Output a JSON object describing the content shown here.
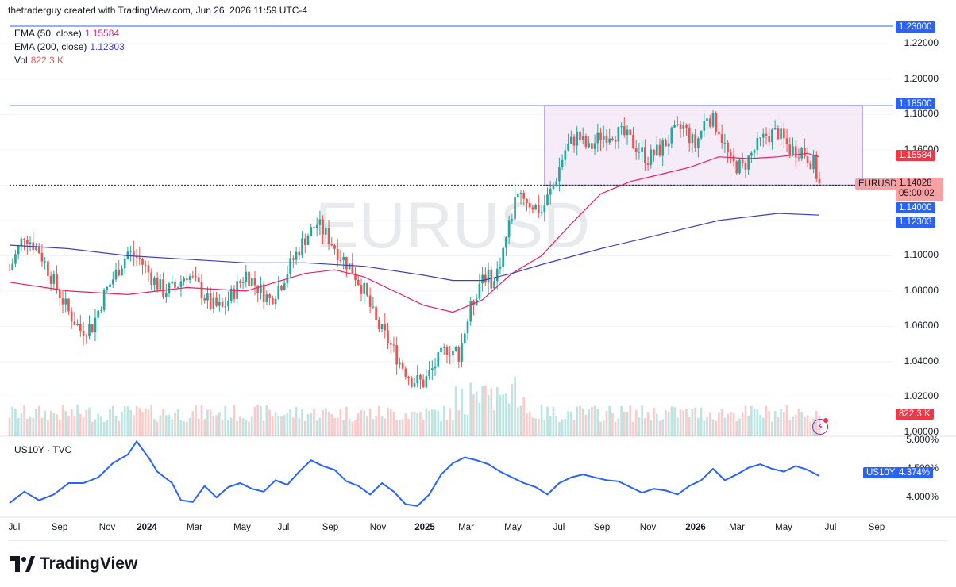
{
  "header": {
    "attribution": "thetraderguy created with TradingView.com, Jun 26, 2026 11:59 UTC-4"
  },
  "legend": {
    "ema50_label": "EMA (50, close)",
    "ema50_value": "1.15584",
    "ema200_label": "EMA (200, close)",
    "ema200_value": "1.12303",
    "vol_label": "Vol",
    "vol_value": "822.3 K"
  },
  "watermark": "EURUSD",
  "price_axis": {
    "ticks": [
      "1.22000",
      "1.20000",
      "1.18000",
      "1.16000",
      "1.10000",
      "1.08000",
      "1.06000",
      "1.04000",
      "1.02000",
      "1.00000"
    ],
    "badges": {
      "top": "1.23000",
      "resistance": "1.18500",
      "ema50": "1.15584",
      "symbol": "EURUSD",
      "last": "1.14028",
      "countdown": "05:00:02",
      "support": "1.14000",
      "ema200": "1.12303",
      "volume": "822.3 K"
    }
  },
  "sub_pane": {
    "title": "US10Y · TVC",
    "ticks": [
      "5.000%",
      "4.500%",
      "4.000%"
    ],
    "badge_symbol": "US10Y",
    "badge_value": "4.374%"
  },
  "time_axis": {
    "labels": [
      "Jul",
      "Sep",
      "Nov",
      "2024",
      "Mar",
      "May",
      "Jul",
      "Sep",
      "Nov",
      "2025",
      "Mar",
      "May",
      "Jul",
      "Sep",
      "Nov",
      "2026",
      "Mar",
      "May",
      "Jul",
      "Sep"
    ],
    "bold": [
      "2024",
      "2025",
      "2026"
    ]
  },
  "footer": {
    "logo_text": "TradingView"
  },
  "colors": {
    "up": "#26a69a",
    "down": "#ef5350",
    "ema50": "#e91e63",
    "ema200": "#3f3fbf",
    "range_fill": "#f3e5f5",
    "range_border": "#7e57c2",
    "line_blue": "#2962ff",
    "us10y": "#2962ff"
  },
  "chart_data": [
    {
      "type": "candlestick",
      "title": "EURUSD",
      "ylim": [
        1.0,
        1.23
      ],
      "x_range": [
        "2023-07",
        "2026-09"
      ],
      "horizontal_levels": [
        1.23,
        1.185,
        1.14
      ],
      "range_box": {
        "from": "2025-06",
        "to": "2026-08",
        "low": 1.14,
        "high": 1.185
      },
      "ema50_last": 1.15584,
      "ema200_last": 1.12303,
      "last_close": 1.14028,
      "anchor_path": [
        [
          0,
          1.092
        ],
        [
          5,
          1.112
        ],
        [
          10,
          1.103
        ],
        [
          15,
          1.085
        ],
        [
          20,
          1.068
        ],
        [
          24,
          1.058
        ],
        [
          28,
          1.06
        ],
        [
          32,
          1.078
        ],
        [
          36,
          1.09
        ],
        [
          40,
          1.102
        ],
        [
          44,
          1.098
        ],
        [
          48,
          1.088
        ],
        [
          52,
          1.08
        ],
        [
          56,
          1.082
        ],
        [
          60,
          1.09
        ],
        [
          64,
          1.082
        ],
        [
          68,
          1.072
        ],
        [
          72,
          1.07
        ],
        [
          76,
          1.08
        ],
        [
          80,
          1.09
        ],
        [
          84,
          1.082
        ],
        [
          88,
          1.075
        ],
        [
          92,
          1.085
        ],
        [
          96,
          1.098
        ],
        [
          100,
          1.11
        ],
        [
          104,
          1.118
        ],
        [
          108,
          1.11
        ],
        [
          112,
          1.1
        ],
        [
          116,
          1.092
        ],
        [
          120,
          1.08
        ],
        [
          124,
          1.062
        ],
        [
          128,
          1.052
        ],
        [
          132,
          1.04
        ],
        [
          136,
          1.03
        ],
        [
          140,
          1.028
        ],
        [
          144,
          1.038
        ],
        [
          148,
          1.048
        ],
        [
          152,
          1.045
        ],
        [
          156,
          1.07
        ],
        [
          160,
          1.09
        ],
        [
          164,
          1.085
        ],
        [
          168,
          1.11
        ],
        [
          172,
          1.138
        ],
        [
          176,
          1.13
        ],
        [
          180,
          1.125
        ],
        [
          184,
          1.14
        ],
        [
          188,
          1.16
        ],
        [
          192,
          1.168
        ],
        [
          196,
          1.16
        ],
        [
          200,
          1.168
        ],
        [
          204,
          1.17
        ],
        [
          208,
          1.168
        ],
        [
          212,
          1.162
        ],
        [
          216,
          1.155
        ],
        [
          220,
          1.16
        ],
        [
          224,
          1.168
        ],
        [
          228,
          1.173
        ],
        [
          232,
          1.162
        ],
        [
          236,
          1.18
        ],
        [
          240,
          1.172
        ],
        [
          244,
          1.152
        ],
        [
          248,
          1.15
        ],
        [
          252,
          1.16
        ],
        [
          256,
          1.168
        ],
        [
          260,
          1.17
        ],
        [
          264,
          1.16
        ],
        [
          268,
          1.16
        ],
        [
          272,
          1.152
        ],
        [
          274,
          1.14
        ]
      ],
      "ema50_path": [
        [
          0,
          1.085
        ],
        [
          20,
          1.08
        ],
        [
          40,
          1.078
        ],
        [
          60,
          1.082
        ],
        [
          80,
          1.08
        ],
        [
          100,
          1.09
        ],
        [
          110,
          1.092
        ],
        [
          120,
          1.088
        ],
        [
          140,
          1.072
        ],
        [
          150,
          1.068
        ],
        [
          160,
          1.075
        ],
        [
          170,
          1.09
        ],
        [
          180,
          1.1
        ],
        [
          190,
          1.118
        ],
        [
          200,
          1.135
        ],
        [
          210,
          1.142
        ],
        [
          220,
          1.146
        ],
        [
          230,
          1.15
        ],
        [
          240,
          1.156
        ],
        [
          250,
          1.155
        ],
        [
          260,
          1.156
        ],
        [
          270,
          1.158
        ],
        [
          274,
          1.156
        ]
      ],
      "ema200_path": [
        [
          0,
          1.106
        ],
        [
          20,
          1.104
        ],
        [
          40,
          1.1
        ],
        [
          60,
          1.098
        ],
        [
          80,
          1.096
        ],
        [
          100,
          1.096
        ],
        [
          120,
          1.094
        ],
        [
          140,
          1.089
        ],
        [
          150,
          1.086
        ],
        [
          160,
          1.086
        ],
        [
          170,
          1.09
        ],
        [
          180,
          1.095
        ],
        [
          200,
          1.104
        ],
        [
          220,
          1.112
        ],
        [
          240,
          1.12
        ],
        [
          260,
          1.124
        ],
        [
          274,
          1.123
        ]
      ]
    },
    {
      "type": "line",
      "title": "US10Y · TVC",
      "ylim": [
        3.75,
        5.0
      ],
      "last_value": 4.374,
      "path": [
        [
          0,
          3.9
        ],
        [
          5,
          4.1
        ],
        [
          10,
          3.95
        ],
        [
          15,
          4.05
        ],
        [
          20,
          4.25
        ],
        [
          25,
          4.25
        ],
        [
          30,
          4.35
        ],
        [
          35,
          4.6
        ],
        [
          40,
          4.75
        ],
        [
          43,
          4.98
        ],
        [
          47,
          4.7
        ],
        [
          50,
          4.45
        ],
        [
          55,
          4.25
        ],
        [
          58,
          3.95
        ],
        [
          62,
          3.92
        ],
        [
          66,
          4.2
        ],
        [
          70,
          4.0
        ],
        [
          74,
          4.18
        ],
        [
          78,
          4.25
        ],
        [
          82,
          4.15
        ],
        [
          86,
          4.1
        ],
        [
          90,
          4.3
        ],
        [
          94,
          4.22
        ],
        [
          98,
          4.45
        ],
        [
          102,
          4.65
        ],
        [
          106,
          4.55
        ],
        [
          110,
          4.48
        ],
        [
          114,
          4.28
        ],
        [
          118,
          4.2
        ],
        [
          122,
          4.05
        ],
        [
          126,
          4.25
        ],
        [
          130,
          4.1
        ],
        [
          134,
          3.88
        ],
        [
          138,
          3.85
        ],
        [
          142,
          4.05
        ],
        [
          146,
          4.4
        ],
        [
          150,
          4.6
        ],
        [
          154,
          4.7
        ],
        [
          158,
          4.65
        ],
        [
          162,
          4.58
        ],
        [
          166,
          4.45
        ],
        [
          170,
          4.35
        ],
        [
          174,
          4.25
        ],
        [
          178,
          4.18
        ],
        [
          182,
          4.05
        ],
        [
          186,
          4.25
        ],
        [
          190,
          4.35
        ],
        [
          194,
          4.4
        ],
        [
          198,
          4.35
        ],
        [
          202,
          4.3
        ],
        [
          206,
          4.28
        ],
        [
          210,
          4.18
        ],
        [
          214,
          4.08
        ],
        [
          218,
          4.15
        ],
        [
          222,
          4.12
        ],
        [
          226,
          4.05
        ],
        [
          230,
          4.2
        ],
        [
          234,
          4.3
        ],
        [
          238,
          4.5
        ],
        [
          242,
          4.3
        ],
        [
          246,
          4.4
        ],
        [
          250,
          4.52
        ],
        [
          254,
          4.58
        ],
        [
          258,
          4.5
        ],
        [
          262,
          4.45
        ],
        [
          266,
          4.55
        ],
        [
          270,
          4.48
        ],
        [
          274,
          4.374
        ]
      ]
    }
  ]
}
